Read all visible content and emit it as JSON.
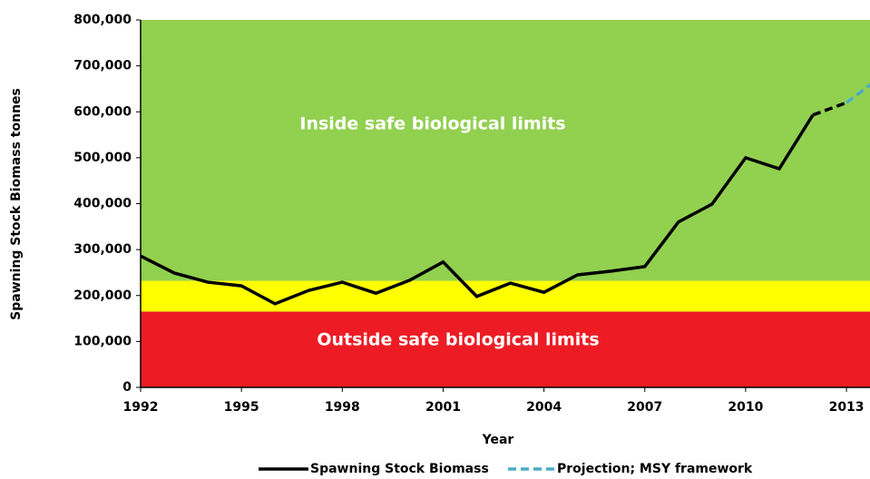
{
  "chart_data": {
    "type": "line",
    "x_label": "Year",
    "y_label": "Spawning Stock Biomass tonnes",
    "annotations": [
      "Inside safe biological limits",
      "Outside safe biological limits"
    ],
    "bands": [
      {
        "from": 0,
        "to": 165000,
        "color": "#ed1c24"
      },
      {
        "from": 165000,
        "to": 232000,
        "color": "#ffff00"
      },
      {
        "from": 232000,
        "to": 800000,
        "color": "#92d050"
      }
    ],
    "series": [
      {
        "name": "Spawning Stock Biomass",
        "color": "#000000",
        "dashed_from": 2012,
        "x": [
          1992,
          1993,
          1994,
          1995,
          1996,
          1997,
          1998,
          1999,
          2000,
          2001,
          2002,
          2003,
          2004,
          2005,
          2006,
          2007,
          2008,
          2009,
          2010,
          2011,
          2012,
          2013
        ],
        "values": [
          286000,
          249000,
          229000,
          221000,
          182000,
          211000,
          229000,
          205000,
          233000,
          273000,
          198000,
          227000,
          207000,
          245000,
          253000,
          263000,
          360000,
          399000,
          500000,
          476000,
          593000,
          620000
        ]
      },
      {
        "name": "Projection; MSY framework",
        "color": "#4bacc6",
        "dashed": true,
        "x": [
          2013,
          2014
        ],
        "values": [
          620000,
          675000
        ]
      }
    ],
    "xlim": [
      1992,
      2013.7
    ],
    "xticks": [
      1992,
      1995,
      1998,
      2001,
      2004,
      2007,
      2010,
      2013
    ],
    "ylim": [
      0,
      800000
    ],
    "yticks": [
      0,
      {
        "value": 100000,
        "label": "100,000"
      },
      {
        "value": 200000,
        "label": "200,000"
      },
      {
        "value": 300000,
        "label": "300,000"
      },
      {
        "value": 400000,
        "label": "400,000"
      },
      {
        "value": 500000,
        "label": "500,000"
      },
      {
        "value": 600000,
        "label": "600,000"
      },
      {
        "value": 700000,
        "label": "700,000"
      },
      {
        "value": 800000,
        "label": "800,000"
      }
    ]
  }
}
